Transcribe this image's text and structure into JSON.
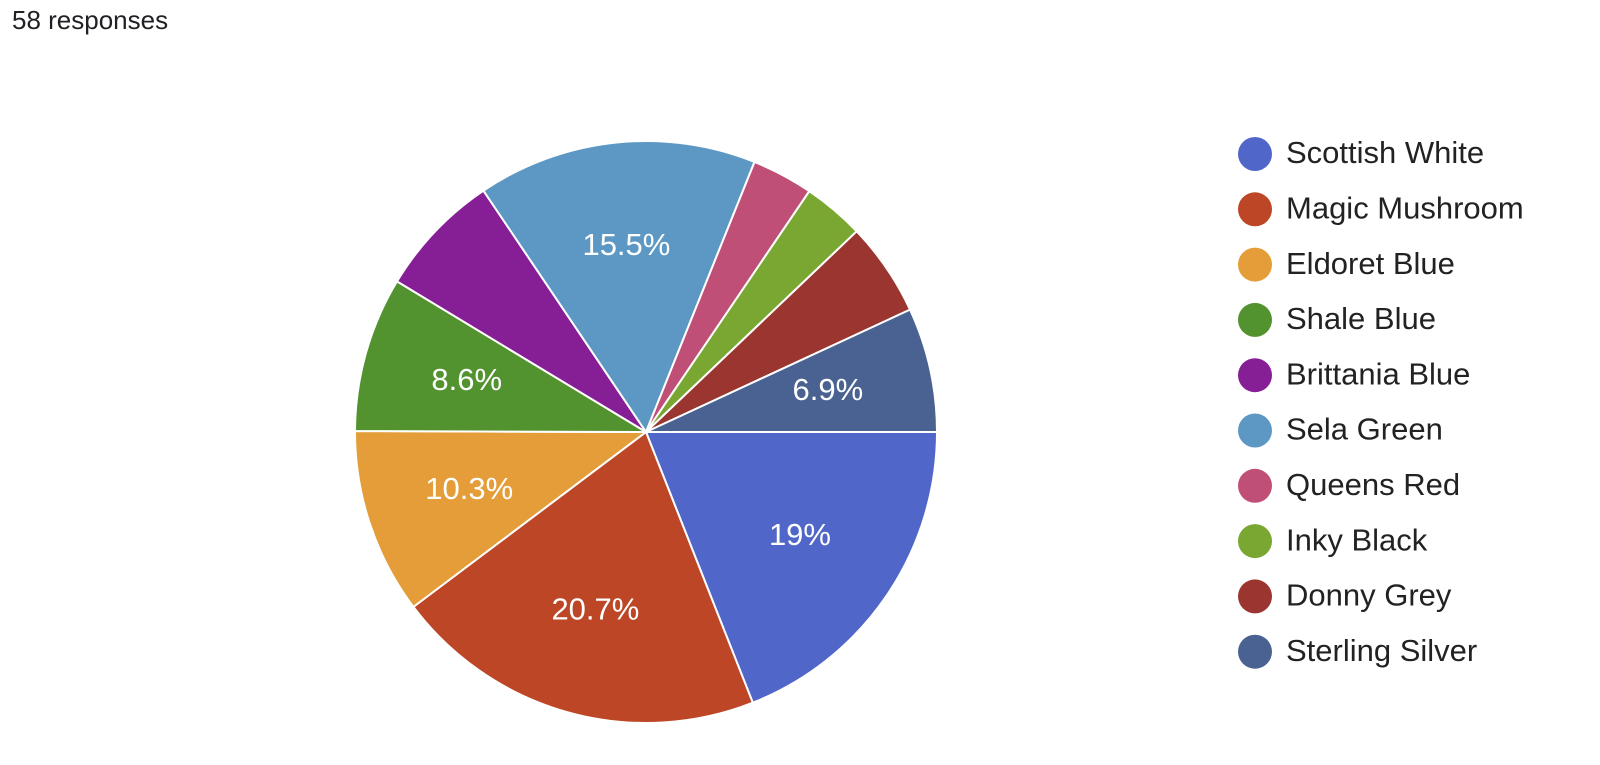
{
  "chart_data": {
    "type": "pie",
    "title": "58 responses",
    "categories": [
      "Scottish White",
      "Magic Mushroom",
      "Eldoret Blue",
      "Shale Blue",
      "Brittania Blue",
      "Sela Green",
      "Queens Red",
      "Inky Black",
      "Donny Grey",
      "Sterling Silver"
    ],
    "values": [
      19,
      20.7,
      10.3,
      8.6,
      6.9,
      15.5,
      3.4,
      3.4,
      5.2,
      6.9
    ],
    "value_labels": [
      "19%",
      "20.7%",
      "10.3%",
      "8.6%",
      null,
      "15.5%",
      null,
      null,
      null,
      "6.9%"
    ],
    "colors": [
      "#5066c8",
      "#bc4625",
      "#e49d38",
      "#52922f",
      "#861e95",
      "#5c98c3",
      "#c04f77",
      "#7aa732",
      "#9a3530",
      "#4a6291"
    ],
    "legend": "right"
  }
}
